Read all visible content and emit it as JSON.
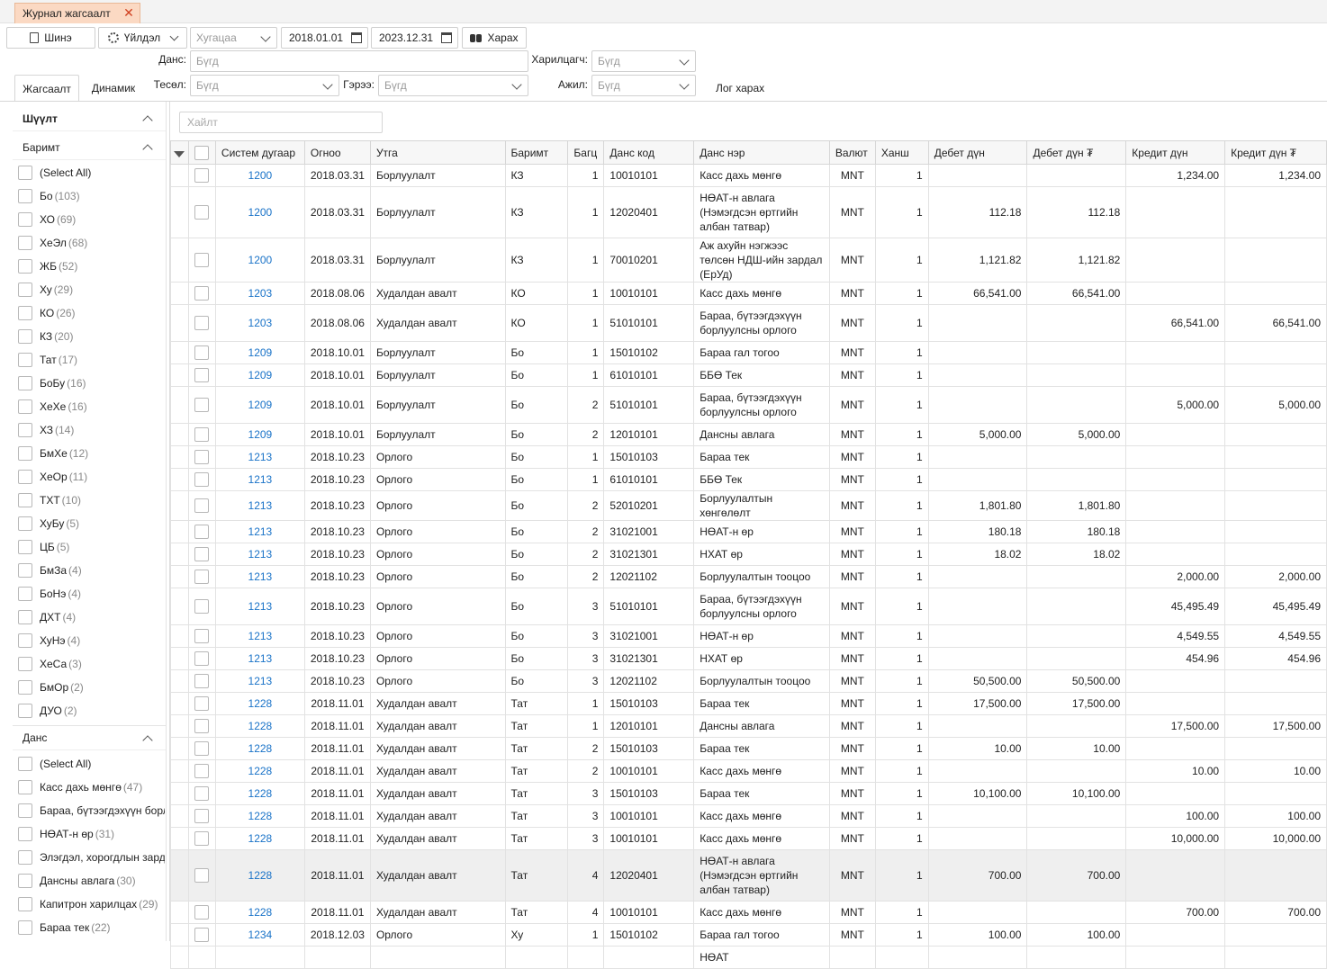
{
  "window": {
    "tab_title": "Журнал жагсаалт"
  },
  "toolbar": {
    "new_label": "Шинэ",
    "action_label": "Үйлдэл",
    "period_placeholder": "Хугацаа",
    "date_from": "2018.01.01",
    "date_to": "2023.12.31",
    "view_label": "Харах"
  },
  "filters": {
    "account_label": "Данс:",
    "account_value": "Бүгд",
    "partner_label": "Харилцагч:",
    "partner_value": "Бүгд",
    "dept_label": "Тесөл:",
    "dept_value": "Бүгд",
    "contract_label": "Гэрээ:",
    "contract_value": "Бүгд",
    "job_label": "Ажил:",
    "job_value": "Бүгд",
    "log_label": "Лог харах"
  },
  "tabs": [
    {
      "label": "Жагсаалт"
    },
    {
      "label": "Динамик"
    }
  ],
  "sidebar": {
    "filter_title": "Шүүлт",
    "doc_title": "Баримт",
    "doc_items": [
      {
        "label": "(Select All)",
        "count": ""
      },
      {
        "label": "Бо",
        "count": "(103)"
      },
      {
        "label": "ХО",
        "count": "(69)"
      },
      {
        "label": "ХеЭл",
        "count": "(68)"
      },
      {
        "label": "ЖБ",
        "count": "(52)"
      },
      {
        "label": "Ху",
        "count": "(29)"
      },
      {
        "label": "КО",
        "count": "(26)"
      },
      {
        "label": "КЗ",
        "count": "(20)"
      },
      {
        "label": "Тат",
        "count": "(17)"
      },
      {
        "label": "БоБу",
        "count": "(16)"
      },
      {
        "label": "ХеХе",
        "count": "(16)"
      },
      {
        "label": "ХЗ",
        "count": "(14)"
      },
      {
        "label": "БмХе",
        "count": "(12)"
      },
      {
        "label": "ХеОр",
        "count": "(11)"
      },
      {
        "label": "ТХТ",
        "count": "(10)"
      },
      {
        "label": "ХуБу",
        "count": "(5)"
      },
      {
        "label": "ЦБ",
        "count": "(5)"
      },
      {
        "label": "БмЗа",
        "count": "(4)"
      },
      {
        "label": "БоНэ",
        "count": "(4)"
      },
      {
        "label": "ДХТ",
        "count": "(4)"
      },
      {
        "label": "ХуНэ",
        "count": "(4)"
      },
      {
        "label": "ХеСа",
        "count": "(3)"
      },
      {
        "label": "БмОр",
        "count": "(2)"
      },
      {
        "label": "ДУО",
        "count": "(2)"
      }
    ],
    "account_title": "Данс",
    "account_items": [
      {
        "label": "(Select All)",
        "count": ""
      },
      {
        "label": "Касс дахь мөнгө",
        "count": "(47)"
      },
      {
        "label": "Бараа, бүтээгдэхүүн борл",
        "count": ""
      },
      {
        "label": "НӨАТ-н өр",
        "count": "(31)"
      },
      {
        "label": "Элэгдэл, хорогдлын зард",
        "count": ""
      },
      {
        "label": "Дансны авлага",
        "count": "(30)"
      },
      {
        "label": "Капитрон харилцах",
        "count": "(29)"
      },
      {
        "label": "Бараа тек",
        "count": "(22)"
      }
    ]
  },
  "grid": {
    "search_placeholder": "Хайлт",
    "columns": [
      "Систем дугаар",
      "Огноо",
      "Утга",
      "Баримт",
      "Багц",
      "Данс код",
      "Данс нэр",
      "Валют",
      "Ханш",
      "Дебет дүн",
      "Дебет дүн ₮",
      "Кредит дүн",
      "Кредит дүн ₮"
    ],
    "rows": [
      [
        "1200",
        "2018.03.31",
        "Борлуулалт",
        "КЗ",
        "1",
        "10010101",
        "Касс дахь мөнгө",
        "MNT",
        "1",
        "",
        "",
        "1,234.00",
        "1,234.00"
      ],
      [
        "1200",
        "2018.03.31",
        "Борлуулалт",
        "КЗ",
        "1",
        "12020401",
        "НӨАТ-н авлага (Нэмэгдсэн өртгийн албан татвар)",
        "MNT",
        "1",
        "112.18",
        "112.18",
        "",
        ""
      ],
      [
        "1200",
        "2018.03.31",
        "Борлуулалт",
        "КЗ",
        "1",
        "70010201",
        "Аж ахуйн нэгжээс төлсөн НДШ-ийн зардал (ЕрУд)",
        "MNT",
        "1",
        "1,121.82",
        "1,121.82",
        "",
        ""
      ],
      [
        "1203",
        "2018.08.06",
        "Худалдан авалт",
        "КО",
        "1",
        "10010101",
        "Касс дахь мөнгө",
        "MNT",
        "1",
        "66,541.00",
        "66,541.00",
        "",
        ""
      ],
      [
        "1203",
        "2018.08.06",
        "Худалдан авалт",
        "КО",
        "1",
        "51010101",
        "Бараа, бүтээгдэхүүн борлуулсны орлого",
        "MNT",
        "1",
        "",
        "",
        "66,541.00",
        "66,541.00"
      ],
      [
        "1209",
        "2018.10.01",
        "Борлуулалт",
        "Бо",
        "1",
        "15010102",
        "Бараа гал тогоо",
        "MNT",
        "1",
        "",
        "",
        "",
        ""
      ],
      [
        "1209",
        "2018.10.01",
        "Борлуулалт",
        "Бо",
        "1",
        "61010101",
        "ББӨ Тек",
        "MNT",
        "1",
        "",
        "",
        "",
        ""
      ],
      [
        "1209",
        "2018.10.01",
        "Борлуулалт",
        "Бо",
        "2",
        "51010101",
        "Бараа, бүтээгдэхүүн борлуулсны орлого",
        "MNT",
        "1",
        "",
        "",
        "5,000.00",
        "5,000.00"
      ],
      [
        "1209",
        "2018.10.01",
        "Борлуулалт",
        "Бо",
        "2",
        "12010101",
        "Дансны авлага",
        "MNT",
        "1",
        "5,000.00",
        "5,000.00",
        "",
        ""
      ],
      [
        "1213",
        "2018.10.23",
        "Орлого",
        "Бо",
        "1",
        "15010103",
        "Бараа тек",
        "MNT",
        "1",
        "",
        "",
        "",
        ""
      ],
      [
        "1213",
        "2018.10.23",
        "Орлого",
        "Бо",
        "1",
        "61010101",
        "ББӨ Тек",
        "MNT",
        "1",
        "",
        "",
        "",
        ""
      ],
      [
        "1213",
        "2018.10.23",
        "Орлого",
        "Бо",
        "2",
        "52010201",
        "Борлуулалтын хөнгөлөлт",
        "MNT",
        "1",
        "1,801.80",
        "1,801.80",
        "",
        ""
      ],
      [
        "1213",
        "2018.10.23",
        "Орлого",
        "Бо",
        "2",
        "31021001",
        "НӨАТ-н өр",
        "MNT",
        "1",
        "180.18",
        "180.18",
        "",
        ""
      ],
      [
        "1213",
        "2018.10.23",
        "Орлого",
        "Бо",
        "2",
        "31021301",
        "НХАТ өр",
        "MNT",
        "1",
        "18.02",
        "18.02",
        "",
        ""
      ],
      [
        "1213",
        "2018.10.23",
        "Орлого",
        "Бо",
        "2",
        "12021102",
        "Борлуулалтын тооцоо",
        "MNT",
        "1",
        "",
        "",
        "2,000.00",
        "2,000.00"
      ],
      [
        "1213",
        "2018.10.23",
        "Орлого",
        "Бо",
        "3",
        "51010101",
        "Бараа, бүтээгдэхүүн борлуулсны орлого",
        "MNT",
        "1",
        "",
        "",
        "45,495.49",
        "45,495.49"
      ],
      [
        "1213",
        "2018.10.23",
        "Орлого",
        "Бо",
        "3",
        "31021001",
        "НӨАТ-н өр",
        "MNT",
        "1",
        "",
        "",
        "4,549.55",
        "4,549.55"
      ],
      [
        "1213",
        "2018.10.23",
        "Орлого",
        "Бо",
        "3",
        "31021301",
        "НХАТ өр",
        "MNT",
        "1",
        "",
        "",
        "454.96",
        "454.96"
      ],
      [
        "1213",
        "2018.10.23",
        "Орлого",
        "Бо",
        "3",
        "12021102",
        "Борлуулалтын тооцоо",
        "MNT",
        "1",
        "50,500.00",
        "50,500.00",
        "",
        ""
      ],
      [
        "1228",
        "2018.11.01",
        "Худалдан авалт",
        "Тат",
        "1",
        "15010103",
        "Бараа тек",
        "MNT",
        "1",
        "17,500.00",
        "17,500.00",
        "",
        ""
      ],
      [
        "1228",
        "2018.11.01",
        "Худалдан авалт",
        "Тат",
        "1",
        "12010101",
        "Дансны авлага",
        "MNT",
        "1",
        "",
        "",
        "17,500.00",
        "17,500.00"
      ],
      [
        "1228",
        "2018.11.01",
        "Худалдан авалт",
        "Тат",
        "2",
        "15010103",
        "Бараа тек",
        "MNT",
        "1",
        "10.00",
        "10.00",
        "",
        ""
      ],
      [
        "1228",
        "2018.11.01",
        "Худалдан авалт",
        "Тат",
        "2",
        "10010101",
        "Касс дахь мөнгө",
        "MNT",
        "1",
        "",
        "",
        "10.00",
        "10.00"
      ],
      [
        "1228",
        "2018.11.01",
        "Худалдан авалт",
        "Тат",
        "3",
        "15010103",
        "Бараа тек",
        "MNT",
        "1",
        "10,100.00",
        "10,100.00",
        "",
        ""
      ],
      [
        "1228",
        "2018.11.01",
        "Худалдан авалт",
        "Тат",
        "3",
        "10010101",
        "Касс дахь мөнгө",
        "MNT",
        "1",
        "",
        "",
        "100.00",
        "100.00"
      ],
      [
        "1228",
        "2018.11.01",
        "Худалдан авалт",
        "Тат",
        "3",
        "10010101",
        "Касс дахь мөнгө",
        "MNT",
        "1",
        "",
        "",
        "10,000.00",
        "10,000.00"
      ],
      [
        "1228",
        "2018.11.01",
        "Худалдан авалт",
        "Тат",
        "4",
        "12020401",
        "НӨАТ-н авлага (Нэмэгдсэн өртгийн албан татвар)",
        "MNT",
        "1",
        "700.00",
        "700.00",
        "",
        ""
      ],
      [
        "1228",
        "2018.11.01",
        "Худалдан авалт",
        "Тат",
        "4",
        "10010101",
        "Касс дахь мөнгө",
        "MNT",
        "1",
        "",
        "",
        "700.00",
        "700.00"
      ],
      [
        "1234",
        "2018.12.03",
        "Орлого",
        "Ху",
        "1",
        "15010102",
        "Бараа гал тогоо",
        "MNT",
        "1",
        "100.00",
        "100.00",
        "",
        ""
      ],
      [
        "",
        "",
        "",
        "",
        "",
        "",
        "НӨАТ",
        "",
        "",
        "",
        "",
        "",
        ""
      ]
    ]
  }
}
